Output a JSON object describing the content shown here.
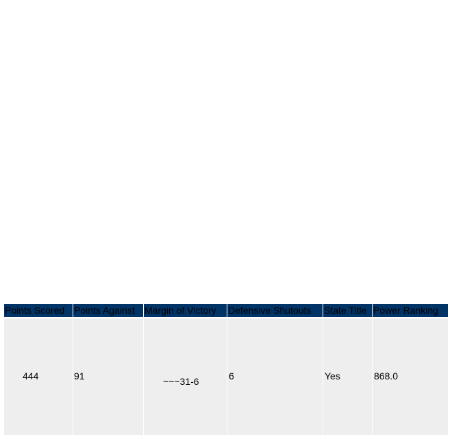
{
  "table": {
    "headers": [
      "Points Scored",
      "Points Against",
      "Margin of Victory",
      "Defensive Shutouts",
      "State Title",
      "Power Ranking"
    ],
    "rows": [
      [
        "444",
        "91",
        "~~~31-6",
        "6",
        "Yes",
        "868.0"
      ]
    ]
  }
}
